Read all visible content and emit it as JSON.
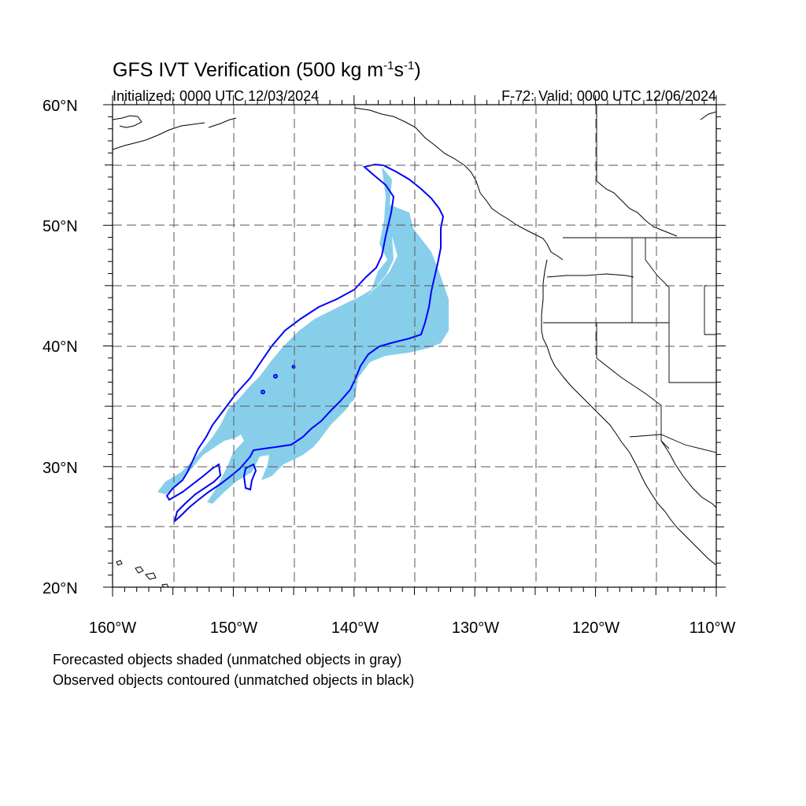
{
  "title": {
    "main_prefix": "GFS IVT Verification (500 kg m",
    "exp1": "-1",
    "mid": "s",
    "exp2": "-1",
    "suffix": ")"
  },
  "subtitle_left": "Initialized: 0000 UTC 12/03/2024",
  "subtitle_right": "F-72: Valid: 0000 UTC 12/06/2024",
  "lat_labels": [
    "60°N",
    "50°N",
    "40°N",
    "30°N",
    "20°N"
  ],
  "lon_labels": [
    "160°W",
    "150°W",
    "140°W",
    "130°W",
    "120°W",
    "110°W"
  ],
  "footnotes": [
    "Forecasted objects shaded (unmatched objects in gray)",
    "Observed objects contoured (unmatched objects in black)"
  ],
  "colors": {
    "forecast_fill": "#87ceeb",
    "observed_contour": "#0000ff",
    "coastline": "#000000",
    "grid": "#555555"
  },
  "map_extent": {
    "lon": [
      -160,
      -110
    ],
    "lat": [
      20,
      60
    ]
  }
}
